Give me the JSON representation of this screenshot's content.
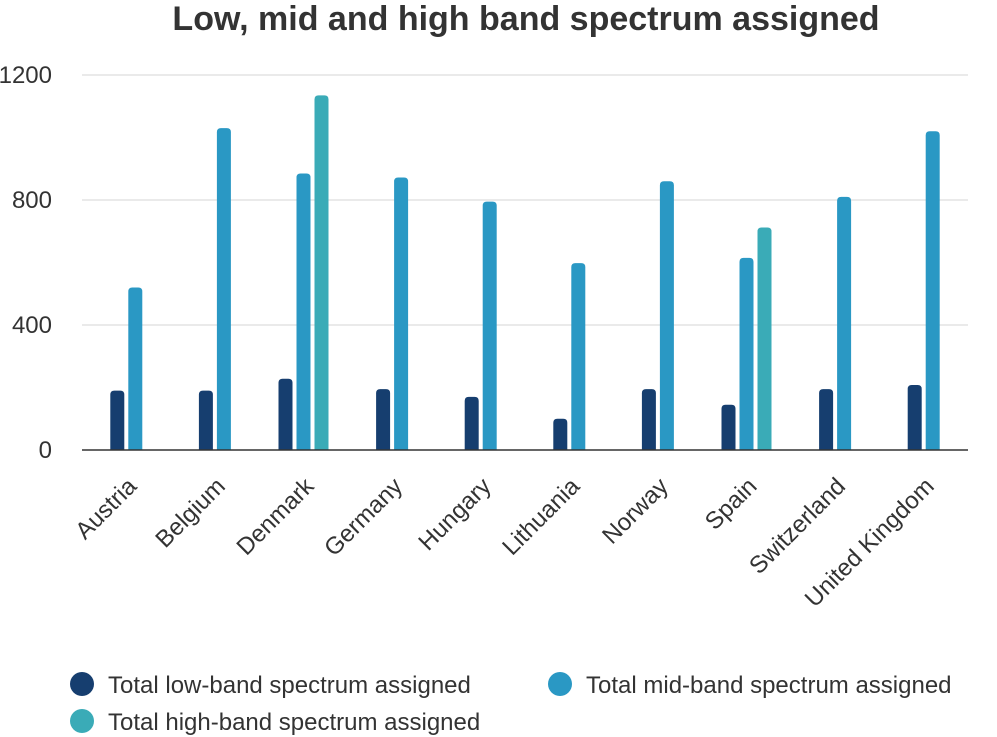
{
  "chart_data": {
    "type": "bar",
    "title": "Low, mid and high band spectrum assigned",
    "xlabel": "",
    "ylabel": "",
    "categories": [
      "Austria",
      "Belgium",
      "Denmark",
      "Germany",
      "Hungary",
      "Lithuania",
      "Norway",
      "Spain",
      "Switzerland",
      "United Kingdom"
    ],
    "series": [
      {
        "name": "Total low-band spectrum assigned",
        "color": "#163e6f",
        "values": [
          190,
          190,
          228,
          195,
          170,
          100,
          195,
          145,
          195,
          208
        ]
      },
      {
        "name": "Total mid-band spectrum assigned",
        "color": "#2a98c4",
        "values": [
          520,
          1030,
          885,
          872,
          795,
          598,
          860,
          615,
          810,
          1020
        ]
      },
      {
        "name": "Total high-band spectrum assigned",
        "color": "#3aabb7",
        "values": [
          null,
          null,
          1135,
          null,
          null,
          null,
          null,
          712,
          null,
          null
        ]
      }
    ],
    "ylim": [
      0,
      1200
    ],
    "yticks": [
      0,
      400,
      800,
      1200
    ],
    "grid": true,
    "legend_position": "bottom"
  }
}
